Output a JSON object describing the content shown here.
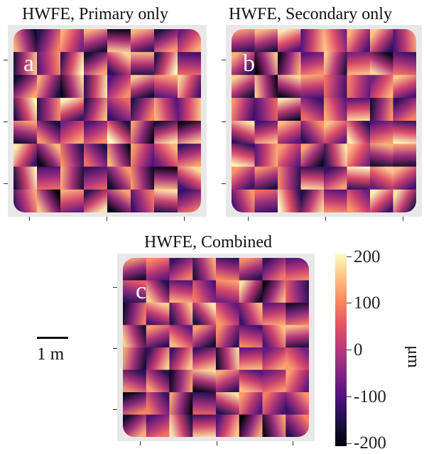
{
  "panels": [
    {
      "id": "a",
      "title": "HWFE, Primary only",
      "letter": "a"
    },
    {
      "id": "b",
      "title": "HWFE, Secondary only",
      "letter": "b"
    },
    {
      "id": "c",
      "title": "HWFE, Combined",
      "letter": "c"
    }
  ],
  "scale_bar": {
    "label": "1 m"
  },
  "colorbar": {
    "unit": "μm",
    "ticks": [
      "200",
      "100",
      "0",
      "-100",
      "-200"
    ],
    "colormap": [
      "#fcfdbf",
      "#fec387",
      "#fc8961",
      "#e75263",
      "#b73779",
      "#822681",
      "#51127c",
      "#1d1147",
      "#000004"
    ]
  }
}
